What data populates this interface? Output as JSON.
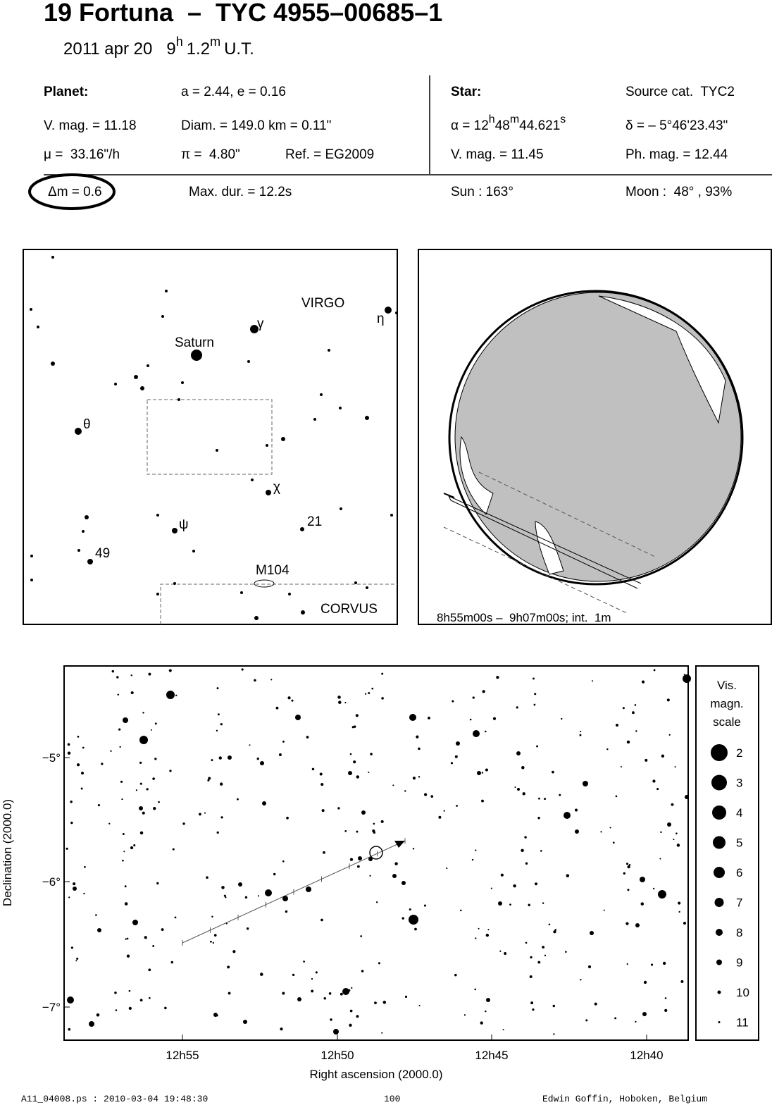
{
  "header": {
    "title": "19 Fortuna  –  TYC 4955–00685–1",
    "date": "2011 apr 20",
    "hour": "9",
    "hour_unit": "h",
    "minute": "1.2",
    "minute_unit": "m",
    "time_scale": "U.T."
  },
  "planet": {
    "heading": "Planet:",
    "orbit": "a = 2.44, e = 0.16",
    "vmag": "V. mag. = 11.18",
    "diam": "Diam. = 149.0 km = 0.11\"",
    "motion": "μ =  33.16\"/h",
    "parallax": "π =  4.80\"",
    "ref": "Ref. = EG2009"
  },
  "star": {
    "heading": "Star:",
    "source": "Source cat.  TYC2",
    "ra_h": "α = 12",
    "ra_h_unit": "h",
    "ra_m": "48",
    "ra_m_unit": "m",
    "ra_s": "44.621",
    "ra_s_unit": "s",
    "dec": "δ = – 5°46'23.43\"",
    "vmag": "V. mag. = 11.45",
    "phmag": "Ph. mag. = 12.44"
  },
  "event": {
    "delta_mag": "Δm = 0.6",
    "max_dur": "Max. dur. = 12.2s",
    "sun": "Sun : 163°",
    "moon": "Moon :  48° , 93%"
  },
  "finder": {
    "labels": [
      "VIRGO",
      "η",
      "γ",
      "Saturn",
      "θ",
      "χ",
      "ψ",
      "21",
      "49",
      "M104",
      "CORVUS"
    ]
  },
  "globe": {
    "caption": "8h55m00s –  9h07m00s; int.  1m"
  },
  "chart": {
    "x_ticks": [
      "12h55",
      "12h50",
      "12h45",
      "12h40"
    ],
    "y_ticks": [
      "−5°",
      "−6°",
      "−7°"
    ],
    "x_title": "Right ascension (2000.0)",
    "y_title": "Declination (2000.0)",
    "scale_title": [
      "Vis.",
      "magn.",
      "scale"
    ],
    "scale": [
      "2",
      "3",
      "4",
      "5",
      "6",
      "7",
      "8",
      "9",
      "10",
      "11"
    ]
  },
  "footer": {
    "file": "A11_04008.ps : 2010-03-04 19:48:30",
    "page": "100",
    "author": "Edwin Goffin, Hoboken, Belgium"
  }
}
